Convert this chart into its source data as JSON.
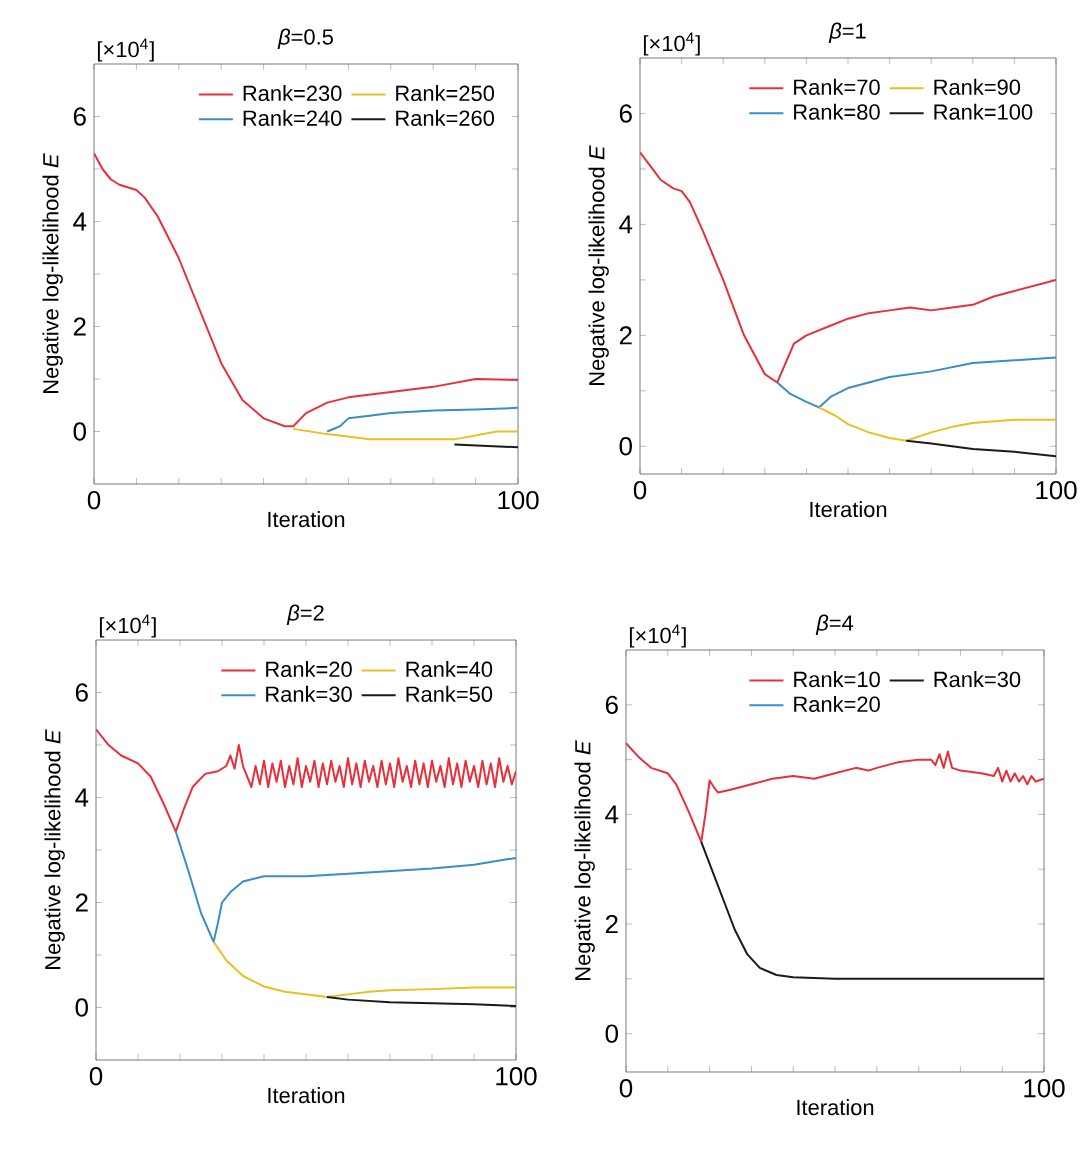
{
  "chart_data": [
    {
      "type": "line",
      "title": "*β*=0.5",
      "xlabel": "Iteration",
      "ylabel": "Negative log-likelihood *E*",
      "annotations": [
        "[×10$^{4}$]"
      ],
      "xlim": [
        0,
        100
      ],
      "ylim": [
        -1,
        7
      ],
      "legend": "top right",
      "xticks": [
        0,
        {
          "value": 10,
          "label": null
        },
        {
          "value": 20,
          "label": null
        },
        {
          "value": 30,
          "label": null
        },
        {
          "value": 40,
          "label": null
        },
        {
          "value": 50,
          "label": null
        },
        {
          "value": 60,
          "label": null
        },
        {
          "value": 70,
          "label": null
        },
        {
          "value": 80,
          "label": null
        },
        {
          "value": 90,
          "label": null
        },
        100
      ],
      "yticks": [
        0,
        {
          "value": 1,
          "label": null
        },
        2,
        {
          "value": 3,
          "label": null
        },
        4,
        {
          "value": 5,
          "label": null
        },
        6
      ],
      "series": [
        {
          "name": "Rank=230",
          "color": "#e8303a",
          "x": [
            0,
            2,
            4,
            6,
            10,
            12,
            15,
            20,
            25,
            30,
            35,
            40,
            45,
            47,
            50,
            55,
            60,
            70,
            80,
            90,
            100
          ],
          "values": [
            5.3,
            5.0,
            4.8,
            4.7,
            4.6,
            4.45,
            4.1,
            3.3,
            2.3,
            1.3,
            0.6,
            0.25,
            0.1,
            0.1,
            0.35,
            0.55,
            0.65,
            0.75,
            0.85,
            1.0,
            0.98
          ]
        },
        {
          "name": "Rank=240",
          "color": "#3a8ec8",
          "x": [
            55,
            58,
            60,
            65,
            70,
            80,
            90,
            100
          ],
          "values": [
            0.0,
            0.1,
            0.25,
            0.3,
            0.35,
            0.4,
            0.42,
            0.45
          ]
        },
        {
          "name": "Rank=250",
          "color": "#e8c020",
          "x": [
            47,
            55,
            65,
            75,
            85,
            95,
            100
          ],
          "values": [
            0.05,
            -0.05,
            -0.15,
            -0.15,
            -0.15,
            0.0,
            0.0
          ]
        },
        {
          "name": "Rank=260",
          "color": "#1a1a1a",
          "x": [
            85,
            100
          ],
          "values": [
            -0.25,
            -0.3
          ]
        }
      ]
    },
    {
      "type": "line",
      "title": "*β*=1",
      "xlabel": "Iteration",
      "ylabel": "Negative log-likelihood *E*",
      "annotations": [
        "[×10$^{4}$]"
      ],
      "xlim": [
        0,
        100
      ],
      "ylim": [
        -0.5,
        7
      ],
      "legend": "top right",
      "xticks": [
        0,
        {
          "value": 10,
          "label": null
        },
        {
          "value": 20,
          "label": null
        },
        {
          "value": 30,
          "label": null
        },
        {
          "value": 40,
          "label": null
        },
        {
          "value": 50,
          "label": null
        },
        {
          "value": 60,
          "label": null
        },
        {
          "value": 70,
          "label": null
        },
        {
          "value": 80,
          "label": null
        },
        {
          "value": 90,
          "label": null
        },
        100
      ],
      "yticks": [
        0,
        {
          "value": 1,
          "label": null
        },
        2,
        {
          "value": 3,
          "label": null
        },
        4,
        {
          "value": 5,
          "label": null
        },
        6
      ],
      "series": [
        {
          "name": "Rank=70",
          "color": "#e8303a",
          "x": [
            0,
            3,
            5,
            8,
            10,
            12,
            15,
            20,
            25,
            30,
            33,
            35,
            37,
            40,
            45,
            50,
            55,
            60,
            65,
            70,
            75,
            80,
            85,
            90,
            100
          ],
          "values": [
            5.3,
            5.0,
            4.8,
            4.65,
            4.6,
            4.4,
            3.9,
            3.0,
            2.0,
            1.3,
            1.15,
            1.5,
            1.85,
            2.0,
            2.15,
            2.3,
            2.4,
            2.45,
            2.5,
            2.45,
            2.5,
            2.55,
            2.7,
            2.8,
            3.0
          ]
        },
        {
          "name": "Rank=80",
          "color": "#3a8ec8",
          "x": [
            33,
            36,
            40,
            43,
            46,
            50,
            55,
            60,
            70,
            80,
            90,
            100
          ],
          "values": [
            1.15,
            0.95,
            0.8,
            0.7,
            0.9,
            1.05,
            1.15,
            1.25,
            1.35,
            1.5,
            1.55,
            1.6
          ]
        },
        {
          "name": "Rank=90",
          "color": "#e8c020",
          "x": [
            43,
            47,
            50,
            55,
            60,
            64,
            70,
            75,
            80,
            90,
            100
          ],
          "values": [
            0.7,
            0.55,
            0.4,
            0.25,
            0.15,
            0.1,
            0.25,
            0.35,
            0.42,
            0.48,
            0.48
          ]
        },
        {
          "name": "Rank=100",
          "color": "#1a1a1a",
          "x": [
            64,
            70,
            75,
            80,
            90,
            100
          ],
          "values": [
            0.1,
            0.05,
            0.0,
            -0.05,
            -0.1,
            -0.18
          ]
        }
      ]
    },
    {
      "type": "line",
      "title": "*β*=2",
      "xlabel": "Iteration",
      "ylabel": "Negative log-likelihood *E*",
      "annotations": [
        "[×10$^{4}$]"
      ],
      "xlim": [
        0,
        100
      ],
      "ylim": [
        -1,
        7
      ],
      "legend": "top right",
      "xticks": [
        0,
        {
          "value": 10,
          "label": null
        },
        {
          "value": 20,
          "label": null
        },
        {
          "value": 30,
          "label": null
        },
        {
          "value": 40,
          "label": null
        },
        {
          "value": 50,
          "label": null
        },
        {
          "value": 60,
          "label": null
        },
        {
          "value": 70,
          "label": null
        },
        {
          "value": 80,
          "label": null
        },
        {
          "value": 90,
          "label": null
        },
        100
      ],
      "yticks": [
        0,
        {
          "value": 1,
          "label": null
        },
        2,
        {
          "value": 3,
          "label": null
        },
        4,
        {
          "value": 5,
          "label": null
        },
        6
      ],
      "series": [
        {
          "name": "Rank=20",
          "color": "#e8303a",
          "x": [
            0,
            3,
            6,
            10,
            13,
            16,
            19,
            21,
            23,
            26,
            29,
            31,
            32,
            33,
            34,
            35,
            36,
            37,
            38,
            39,
            40,
            41,
            42,
            43,
            44,
            45,
            46,
            47,
            48,
            49,
            50,
            51,
            52,
            53,
            54,
            55,
            56,
            57,
            58,
            59,
            60,
            61,
            62,
            63,
            64,
            65,
            66,
            67,
            68,
            69,
            70,
            71,
            72,
            73,
            74,
            75,
            76,
            77,
            78,
            79,
            80,
            81,
            82,
            83,
            84,
            85,
            86,
            87,
            88,
            89,
            90,
            91,
            92,
            93,
            94,
            95,
            96,
            97,
            98,
            99,
            100
          ],
          "values": [
            5.3,
            5.0,
            4.8,
            4.65,
            4.4,
            3.9,
            3.35,
            3.8,
            4.2,
            4.45,
            4.5,
            4.6,
            4.8,
            4.55,
            5.0,
            4.6,
            4.4,
            4.2,
            4.6,
            4.25,
            4.7,
            4.2,
            4.65,
            4.3,
            4.7,
            4.2,
            4.6,
            4.25,
            4.75,
            4.2,
            4.6,
            4.3,
            4.7,
            4.2,
            4.65,
            4.25,
            4.7,
            4.3,
            4.6,
            4.2,
            4.75,
            4.25,
            4.65,
            4.2,
            4.7,
            4.3,
            4.6,
            4.2,
            4.7,
            4.25,
            4.65,
            4.2,
            4.75,
            4.3,
            4.6,
            4.2,
            4.7,
            4.25,
            4.65,
            4.2,
            4.7,
            4.3,
            4.6,
            4.2,
            4.75,
            4.25,
            4.65,
            4.2,
            4.7,
            4.3,
            4.6,
            4.2,
            4.7,
            4.25,
            4.65,
            4.2,
            4.75,
            4.3,
            4.6,
            4.25,
            4.5
          ]
        },
        {
          "name": "Rank=30",
          "color": "#3a8ec8",
          "x": [
            19,
            22,
            25,
            28,
            29,
            30,
            32,
            35,
            40,
            50,
            60,
            70,
            80,
            90,
            100
          ],
          "values": [
            3.35,
            2.6,
            1.8,
            1.25,
            1.6,
            2.0,
            2.2,
            2.4,
            2.5,
            2.5,
            2.55,
            2.6,
            2.65,
            2.72,
            2.85
          ]
        },
        {
          "name": "Rank=40",
          "color": "#e8c020",
          "x": [
            28,
            31,
            35,
            40,
            45,
            50,
            55,
            60,
            65,
            70,
            80,
            90,
            100
          ],
          "values": [
            1.25,
            0.9,
            0.6,
            0.4,
            0.3,
            0.25,
            0.2,
            0.25,
            0.3,
            0.33,
            0.35,
            0.38,
            0.38
          ]
        },
        {
          "name": "Rank=50",
          "color": "#1a1a1a",
          "x": [
            55,
            60,
            70,
            80,
            90,
            100
          ],
          "values": [
            0.2,
            0.15,
            0.1,
            0.08,
            0.06,
            0.03
          ]
        }
      ]
    },
    {
      "type": "line",
      "title": "*β*=4",
      "xlabel": "Iteration",
      "ylabel": "Negative log-likelihood *E*",
      "annotations": [
        "[×10$^{4}$]"
      ],
      "xlim": [
        0,
        100
      ],
      "ylim": [
        -0.7,
        7
      ],
      "legend": "top right",
      "xticks": [
        0,
        {
          "value": 10,
          "label": null
        },
        {
          "value": 20,
          "label": null
        },
        {
          "value": 30,
          "label": null
        },
        {
          "value": 40,
          "label": null
        },
        {
          "value": 50,
          "label": null
        },
        {
          "value": 60,
          "label": null
        },
        {
          "value": 70,
          "label": null
        },
        {
          "value": 80,
          "label": null
        },
        {
          "value": 90,
          "label": null
        },
        100
      ],
      "yticks": [
        0,
        {
          "value": 1,
          "label": null
        },
        2,
        {
          "value": 3,
          "label": null
        },
        4,
        {
          "value": 5,
          "label": null
        },
        6
      ],
      "series": [
        {
          "name": "Rank=10",
          "color": "#e8303a",
          "x": [
            0,
            3,
            6,
            10,
            12,
            15,
            18,
            19,
            20,
            21,
            22,
            25,
            30,
            35,
            40,
            45,
            50,
            55,
            58,
            60,
            65,
            70,
            73,
            74,
            75,
            76,
            77,
            78,
            80,
            85,
            88,
            89,
            90,
            91,
            92,
            93,
            94,
            95,
            96,
            97,
            98,
            100
          ],
          "values": [
            5.3,
            5.05,
            4.85,
            4.75,
            4.55,
            4.05,
            3.5,
            4.0,
            4.62,
            4.5,
            4.4,
            4.45,
            4.55,
            4.65,
            4.7,
            4.65,
            4.75,
            4.85,
            4.8,
            4.85,
            4.95,
            5.0,
            5.0,
            4.9,
            5.1,
            4.85,
            5.15,
            4.85,
            4.8,
            4.75,
            4.7,
            4.85,
            4.6,
            4.8,
            4.6,
            4.75,
            4.6,
            4.7,
            4.55,
            4.7,
            4.6,
            4.65
          ]
        },
        {
          "name": "Rank=20",
          "color": "#3a8ec8"
        },
        {
          "name": "Rank=30",
          "color": "#1a1a1a",
          "x": [
            18,
            20,
            23,
            26,
            29,
            32,
            36,
            40,
            50,
            60,
            100
          ],
          "values": [
            3.5,
            3.1,
            2.5,
            1.9,
            1.45,
            1.2,
            1.07,
            1.03,
            1.0,
            1.0,
            1.0
          ]
        }
      ]
    }
  ]
}
